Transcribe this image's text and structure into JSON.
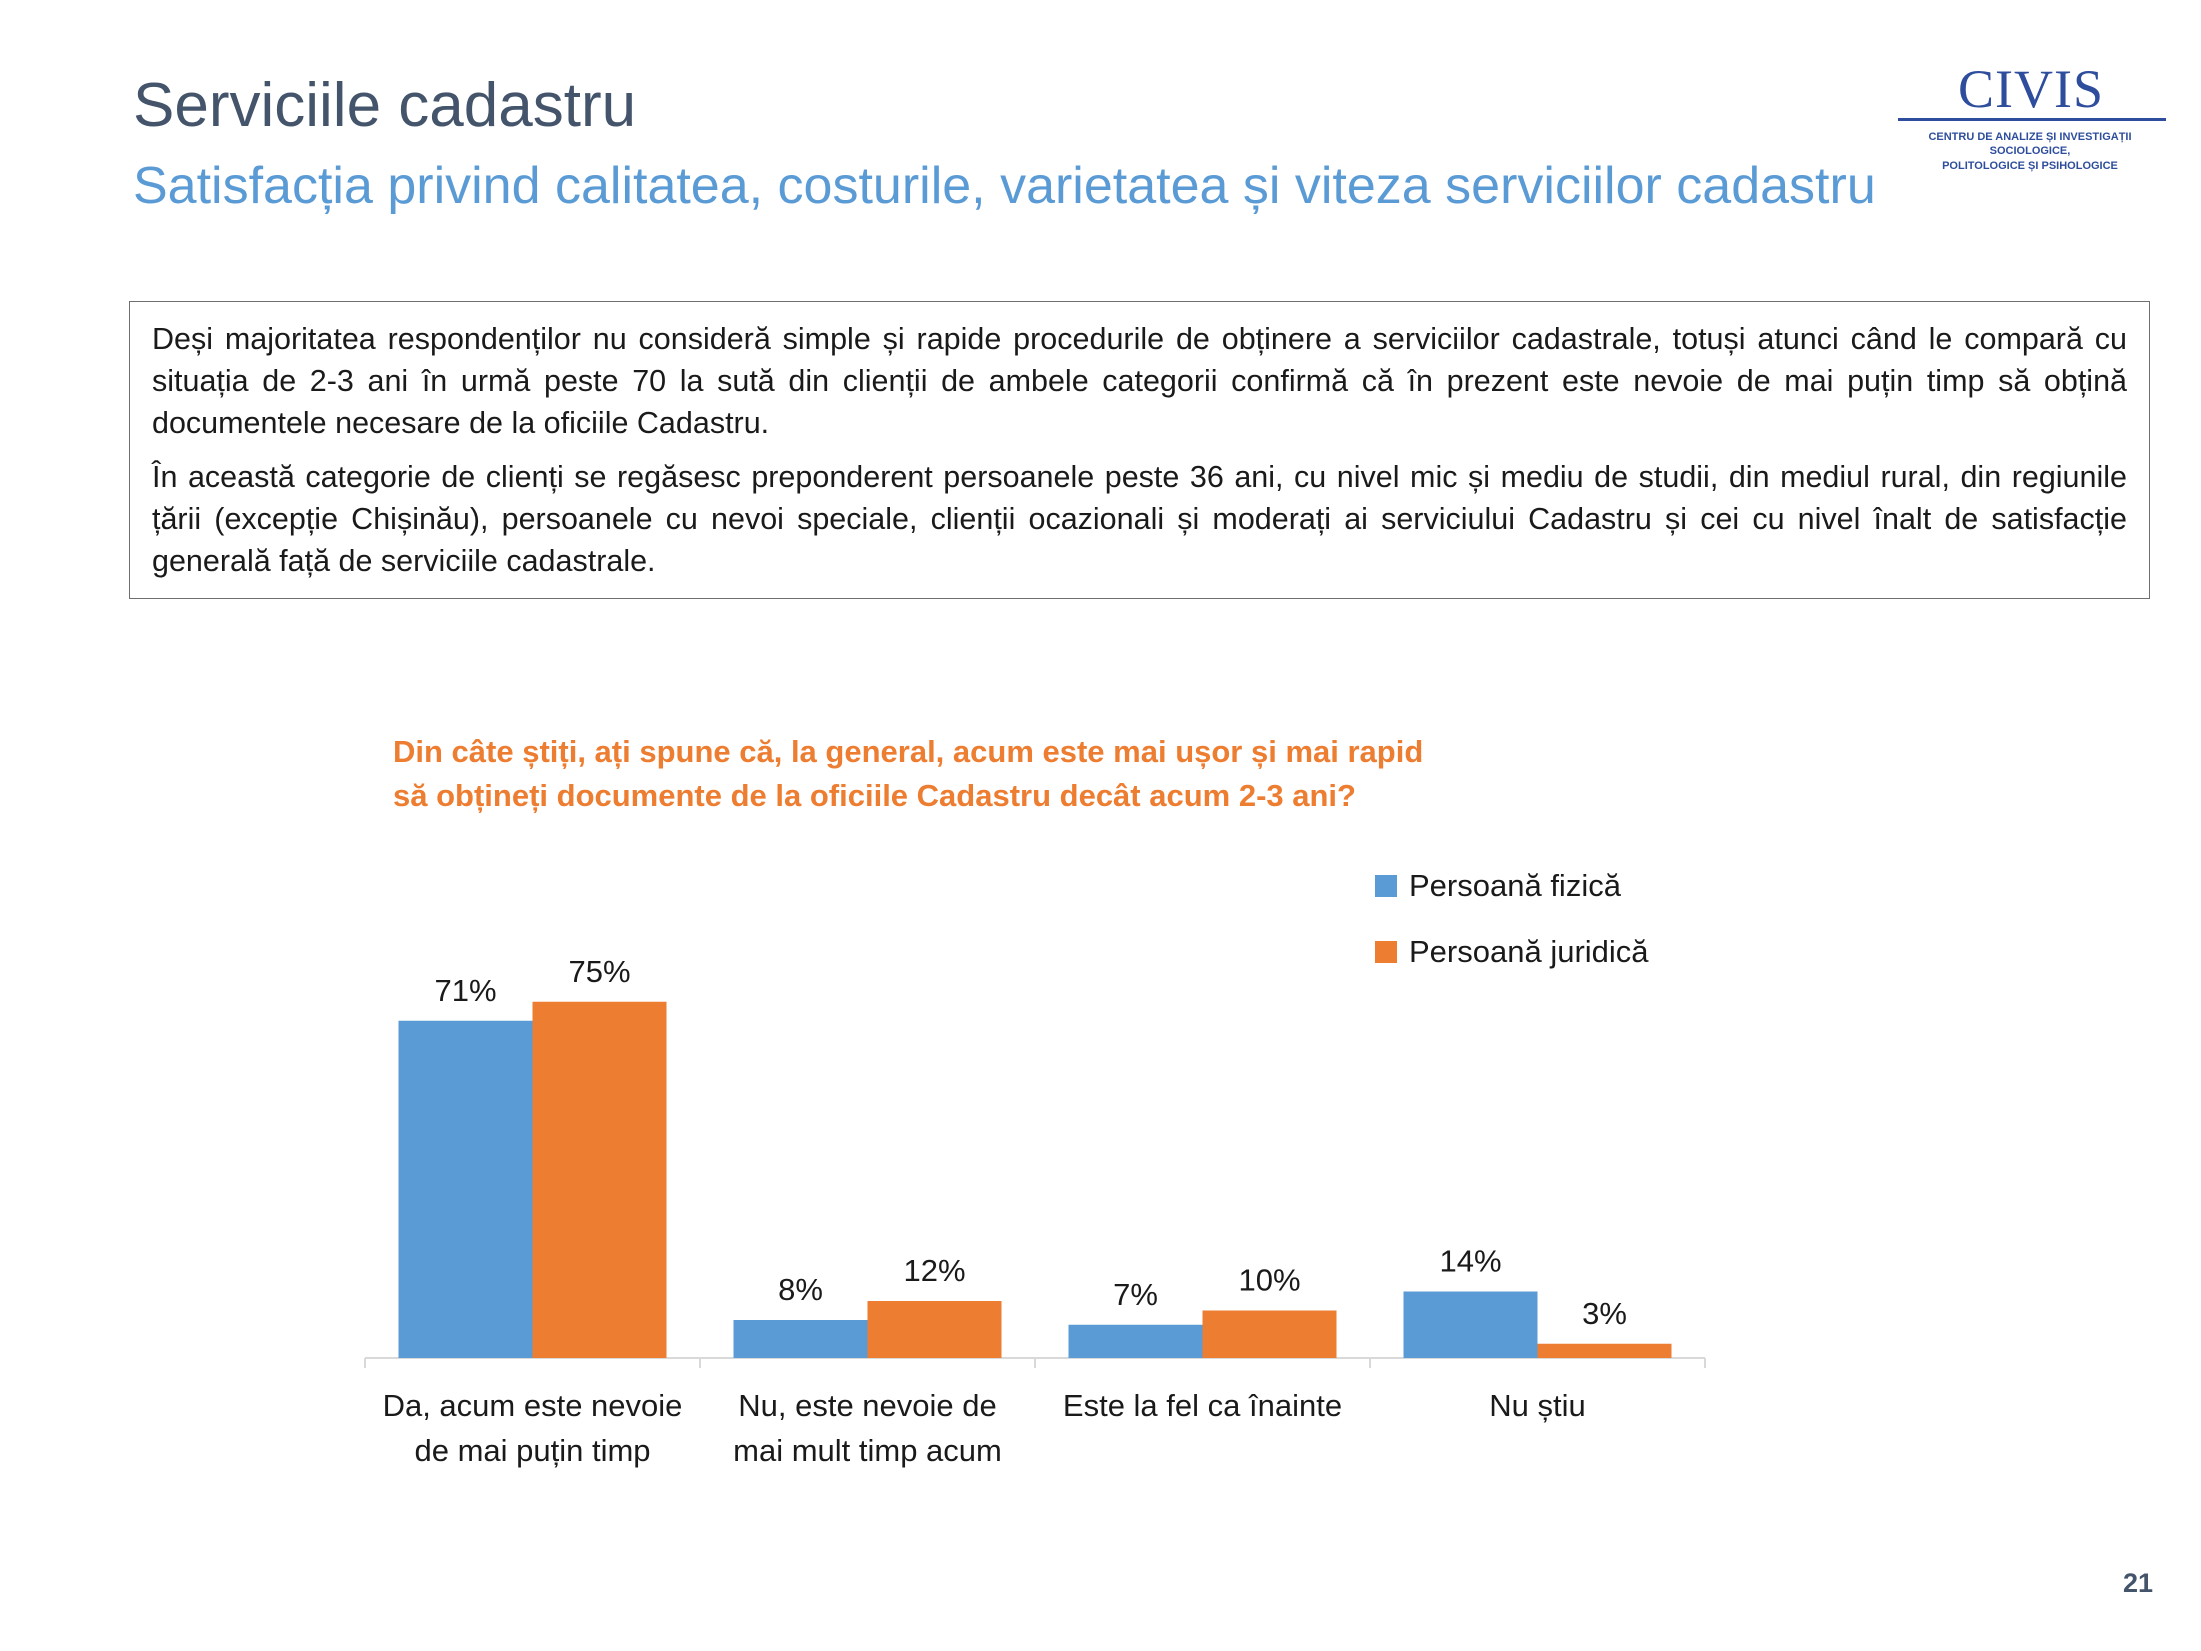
{
  "header": {
    "title": "Serviciile cadastru",
    "subtitle": "Satisfacția privind calitatea, costurile, varietatea și viteza serviciilor cadastru"
  },
  "logo": {
    "word": "CIVIS",
    "line1": "CENTRU DE ANALIZE ȘI INVESTIGAȚII SOCIOLOGICE,",
    "line2": "POLITOLOGICE ȘI PSIHOLOGICE"
  },
  "textbox": {
    "p1": "Deși majoritatea respondenților nu consideră simple și rapide procedurile de obținere a serviciilor cadastrale, totuși atunci când le compară cu situația de 2-3 ani în urmă peste 70 la sută din clienții de ambele categorii confirmă că în prezent este nevoie de mai puțin timp să obțină documentele necesare de la oficiile Cadastru.",
    "p2": "În această categorie de clienți se regăsesc preponderent persoanele peste 36 ani, cu nivel mic și mediu de studii, din mediul rural, din regiunile țării (excepție Chișinău), persoanele cu nevoi speciale, clienții ocazionali și moderați ai serviciului Cadastru și cei cu nivel înalt de satisfacție generală față de serviciile cadastrale."
  },
  "chart_data": {
    "type": "bar",
    "title": "Din câte știți, ați spune că, la general, acum este mai ușor și mai rapid să obțineți documente de la oficiile Cadastru decât acum 2-3 ani?",
    "title_lines": [
      "Din câte știți, ați spune că, la general, acum este mai ușor și mai rapid",
      "să obțineți documente de la oficiile Cadastru decât acum 2-3 ani?"
    ],
    "categories": [
      [
        "Da, acum este nevoie",
        "de mai puțin timp"
      ],
      [
        "Nu, este nevoie de",
        "mai mult timp acum"
      ],
      [
        "Este la fel ca înainte"
      ],
      [
        "Nu știu"
      ]
    ],
    "series": [
      {
        "name": "Persoană fizică",
        "color": "#5b9bd5",
        "values": [
          71,
          8,
          7,
          14
        ],
        "labels": [
          "71%",
          "8%",
          "7%",
          "14%"
        ]
      },
      {
        "name": "Persoană juridică",
        "color": "#ed7d31",
        "values": [
          75,
          12,
          10,
          3
        ],
        "labels": [
          "75%",
          "12%",
          "10%",
          "3%"
        ]
      }
    ],
    "unit": "%",
    "ylim": [
      0,
      80
    ],
    "grid": false,
    "legend": "top-right"
  },
  "page_number": "21"
}
